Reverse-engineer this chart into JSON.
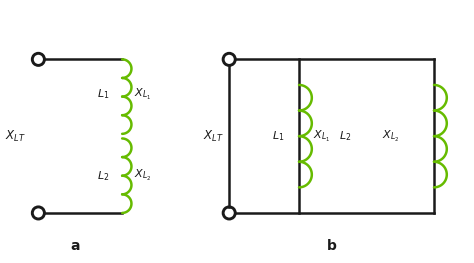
{
  "bg_color": "#ffffff",
  "line_color": "#1a1a1a",
  "coil_color": "#66bb00",
  "line_width": 1.8,
  "coil_lw": 1.8,
  "label_a": "a",
  "label_b": "b",
  "XLT_a": "$X_{LT}$",
  "L1_a": "$L_1$",
  "L2_a": "$L_2$",
  "XL1_a": "$X_{L_1}$",
  "XL2_a": "$X_{L_2}$",
  "XLT_b": "$X_{LT}$",
  "L1_b": "$L_1$",
  "L2_b": "$L_2$",
  "XL1_b": "$X_{L_1}$",
  "XL2_b": "$X_{L_2}$"
}
